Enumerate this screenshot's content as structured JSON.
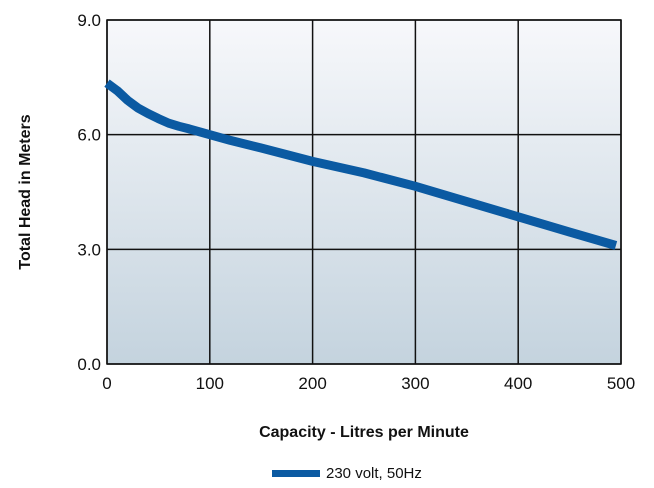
{
  "chart_data": {
    "type": "line",
    "title": "",
    "xlabel": "Capacity - Litres per Minute",
    "ylabel": "Total Head in Meters",
    "xlim": [
      0,
      500
    ],
    "ylim": [
      0,
      9
    ],
    "x_ticks": [
      "0",
      "100",
      "200",
      "300",
      "400",
      "500"
    ],
    "y_ticks": [
      "0.0",
      "3.0",
      "6.0",
      "9.0"
    ],
    "grid": true,
    "legend_position": "bottom-center",
    "series": [
      {
        "name": "230 volt, 50Hz",
        "color": "#0b5aa2",
        "x": [
          0,
          10,
          20,
          30,
          40,
          50,
          60,
          70,
          80,
          100,
          120,
          150,
          200,
          250,
          300,
          350,
          400,
          450,
          495
        ],
        "y": [
          7.35,
          7.15,
          6.9,
          6.7,
          6.55,
          6.42,
          6.3,
          6.22,
          6.15,
          6.0,
          5.85,
          5.65,
          5.3,
          5.0,
          4.65,
          4.25,
          3.85,
          3.45,
          3.1
        ]
      }
    ]
  },
  "colors": {
    "plot_bg_top": "#f7f8fb",
    "plot_bg_bottom": "#c4d3de",
    "grid": "#111111",
    "line": "#0b5aa2"
  }
}
